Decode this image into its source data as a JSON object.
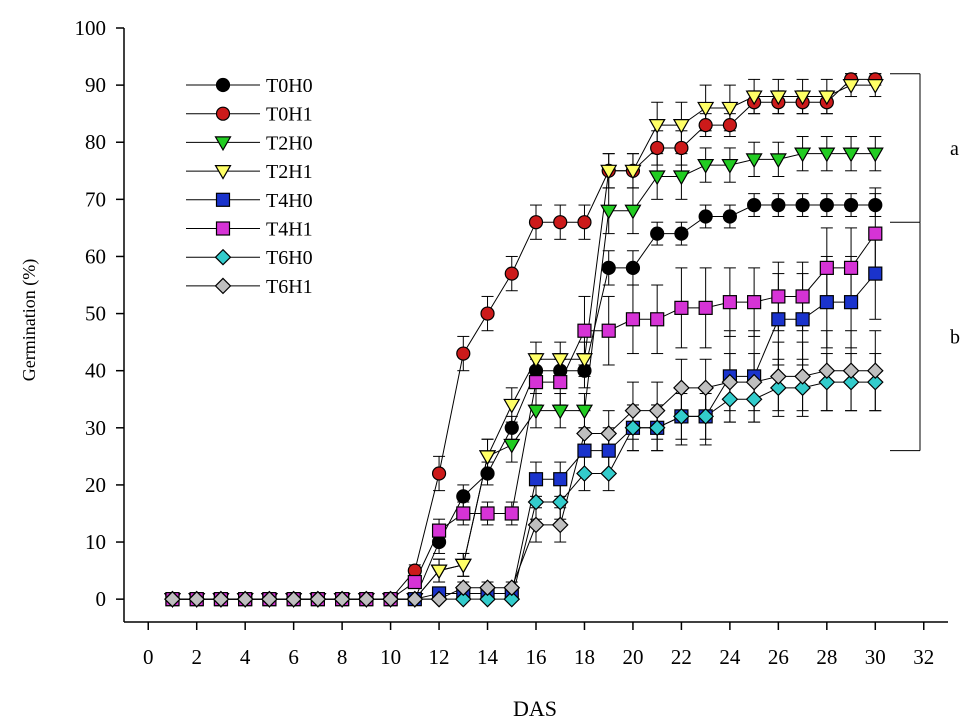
{
  "chart_data": {
    "type": "line",
    "xlabel": "DAS",
    "ylabel": "Germination (%)",
    "xlim": [
      -1,
      33
    ],
    "ylim": [
      -4,
      100
    ],
    "xticks": [
      0,
      2,
      4,
      6,
      8,
      10,
      12,
      14,
      16,
      18,
      20,
      22,
      24,
      26,
      28,
      30,
      32
    ],
    "yticks": [
      0,
      10,
      20,
      30,
      40,
      50,
      60,
      70,
      80,
      90,
      100
    ],
    "x": [
      1,
      2,
      3,
      4,
      5,
      6,
      7,
      8,
      9,
      10,
      11,
      12,
      13,
      14,
      15,
      16,
      17,
      18,
      19,
      20,
      21,
      22,
      23,
      24,
      25,
      26,
      27,
      28,
      29,
      30
    ],
    "legend_position": "top-left",
    "series": [
      {
        "name": "T0H0",
        "marker": "circle",
        "color": "#000000",
        "values": [
          0,
          0,
          0,
          0,
          0,
          0,
          0,
          0,
          0,
          0,
          0,
          10,
          18,
          22,
          30,
          40,
          40,
          40,
          58,
          58,
          64,
          64,
          67,
          67,
          69,
          69,
          69,
          69,
          69,
          69
        ],
        "errors": [
          0,
          0,
          0,
          0,
          0,
          0,
          0,
          0,
          0,
          0,
          0,
          2,
          2,
          2,
          2,
          3,
          3,
          3,
          3,
          3,
          2,
          2,
          2,
          2,
          2,
          2,
          2,
          2,
          2,
          2
        ]
      },
      {
        "name": "T0H1",
        "marker": "circle",
        "color": "#cc1a1a",
        "values": [
          0,
          0,
          0,
          0,
          0,
          0,
          0,
          0,
          0,
          0,
          5,
          22,
          43,
          50,
          57,
          66,
          66,
          66,
          75,
          75,
          79,
          79,
          83,
          83,
          87,
          87,
          87,
          87,
          91,
          91
        ],
        "errors": [
          0,
          0,
          0,
          0,
          0,
          0,
          0,
          0,
          0,
          0,
          1,
          3,
          3,
          3,
          3,
          3,
          3,
          3,
          3,
          3,
          3,
          3,
          2,
          2,
          2,
          2,
          2,
          2,
          1,
          1
        ]
      },
      {
        "name": "T2H0",
        "marker": "triangle-down",
        "color": "#22cc22",
        "values": [
          0,
          0,
          0,
          0,
          0,
          0,
          0,
          0,
          0,
          0,
          0,
          5,
          6,
          25,
          27,
          33,
          33,
          33,
          68,
          68,
          74,
          74,
          76,
          76,
          77,
          77,
          78,
          78,
          78,
          78
        ],
        "errors": [
          0,
          0,
          0,
          0,
          0,
          0,
          0,
          0,
          0,
          0,
          0,
          2,
          2,
          3,
          3,
          3,
          3,
          3,
          4,
          4,
          4,
          4,
          3,
          3,
          3,
          3,
          3,
          3,
          3,
          3
        ]
      },
      {
        "name": "T2H1",
        "marker": "triangle-down",
        "color": "#ffff66",
        "values": [
          0,
          0,
          0,
          0,
          0,
          0,
          0,
          0,
          0,
          0,
          0,
          5,
          6,
          25,
          34,
          42,
          42,
          42,
          75,
          75,
          83,
          83,
          86,
          86,
          88,
          88,
          88,
          88,
          90,
          90
        ],
        "errors": [
          0,
          0,
          0,
          0,
          0,
          0,
          0,
          0,
          0,
          0,
          0,
          2,
          2,
          3,
          3,
          3,
          3,
          3,
          3,
          3,
          4,
          4,
          4,
          4,
          3,
          3,
          3,
          3,
          2,
          2
        ]
      },
      {
        "name": "T4H0",
        "marker": "square",
        "color": "#1a33cc",
        "values": [
          0,
          0,
          0,
          0,
          0,
          0,
          0,
          0,
          0,
          0,
          0,
          1,
          1,
          1,
          1,
          21,
          21,
          26,
          26,
          30,
          30,
          32,
          32,
          39,
          39,
          49,
          49,
          52,
          52,
          57
        ],
        "errors": [
          0,
          0,
          0,
          0,
          0,
          0,
          0,
          0,
          0,
          0,
          0,
          1,
          1,
          1,
          1,
          3,
          3,
          4,
          4,
          4,
          4,
          5,
          5,
          8,
          8,
          8,
          8,
          8,
          8,
          8
        ]
      },
      {
        "name": "T4H1",
        "marker": "square",
        "color": "#d633d6",
        "values": [
          0,
          0,
          0,
          0,
          0,
          0,
          0,
          0,
          0,
          0,
          3,
          12,
          15,
          15,
          15,
          38,
          38,
          47,
          47,
          49,
          49,
          51,
          51,
          52,
          52,
          53,
          53,
          58,
          58,
          64
        ],
        "errors": [
          0,
          0,
          0,
          0,
          0,
          0,
          0,
          0,
          0,
          0,
          1,
          2,
          2,
          2,
          2,
          4,
          4,
          6,
          6,
          6,
          6,
          7,
          7,
          6,
          6,
          6,
          6,
          7,
          7,
          8
        ]
      },
      {
        "name": "T6H0",
        "marker": "diamond",
        "color": "#33cccc",
        "values": [
          0,
          0,
          0,
          0,
          0,
          0,
          0,
          0,
          0,
          0,
          0,
          0,
          0,
          0,
          0,
          17,
          17,
          22,
          22,
          30,
          30,
          32,
          32,
          35,
          35,
          37,
          37,
          38,
          38,
          38
        ],
        "errors": [
          0,
          0,
          0,
          0,
          0,
          0,
          0,
          0,
          0,
          0,
          0,
          0,
          0,
          0,
          0,
          3,
          3,
          3,
          3,
          4,
          4,
          4,
          4,
          4,
          4,
          5,
          5,
          5,
          5,
          5
        ]
      },
      {
        "name": "T6H1",
        "marker": "diamond",
        "color": "#bfbfbf",
        "values": [
          0,
          0,
          0,
          0,
          0,
          0,
          0,
          0,
          0,
          0,
          0,
          0,
          2,
          2,
          2,
          13,
          13,
          29,
          29,
          33,
          33,
          37,
          37,
          38,
          38,
          39,
          39,
          40,
          40,
          40
        ],
        "errors": [
          0,
          0,
          0,
          0,
          0,
          0,
          0,
          0,
          0,
          0,
          0,
          0,
          1,
          1,
          1,
          3,
          3,
          4,
          4,
          5,
          5,
          5,
          5,
          5,
          5,
          6,
          6,
          7,
          7,
          7
        ]
      }
    ],
    "annotations": [
      {
        "text": "a",
        "group_top": 92,
        "group_bottom": 66
      },
      {
        "text": "b",
        "group_top": 66,
        "group_bottom": 26
      }
    ]
  }
}
